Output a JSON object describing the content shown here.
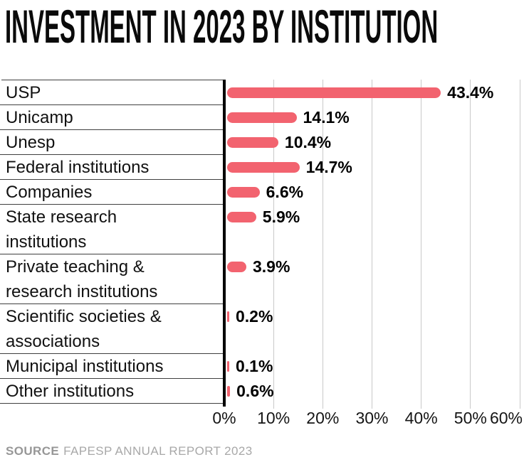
{
  "title": "INVESTMENT IN 2023 BY INSTITUTION",
  "source": {
    "label": "SOURCE",
    "text": "FAPESP ANNUAL REPORT 2023"
  },
  "colors": {
    "bar": "#f2636f",
    "axis": "#000000",
    "gridline": "#c9c9c9",
    "divider": "#3f3f3f",
    "title_text": "#0a0a0a",
    "label_text": "#111111",
    "source_label": "#979797",
    "source_text": "#a8a8a8"
  },
  "chart_data": {
    "type": "bar",
    "orientation": "horizontal",
    "title": "INVESTMENT IN 2023 BY INSTITUTION",
    "categories": [
      "USP",
      "Unicamp",
      "Unesp",
      "Federal institutions",
      "Companies",
      "State research institutions",
      "Private teaching & research institutions",
      "Scientific societies & associations",
      "Municipal institutions",
      "Other institutions"
    ],
    "values": [
      43.4,
      14.1,
      10.4,
      14.7,
      6.6,
      5.9,
      3.9,
      0.2,
      0.1,
      0.6
    ],
    "value_labels": [
      "43.4%",
      "14.1%",
      "10.4%",
      "14.7%",
      "6.6%",
      "5.9%",
      "3.9%",
      "0.2%",
      "0.1%",
      "0.6%"
    ],
    "label_lines": [
      [
        "USP"
      ],
      [
        "Unicamp"
      ],
      [
        "Unesp"
      ],
      [
        "Federal institutions"
      ],
      [
        "Companies"
      ],
      [
        "State research",
        "institutions"
      ],
      [
        "Private teaching &",
        "research institutions"
      ],
      [
        "Scientific societies &",
        "associations"
      ],
      [
        "Municipal institutions"
      ],
      [
        "Other institutions"
      ]
    ],
    "x_tick_values": [
      0,
      10,
      20,
      30,
      40,
      50,
      60
    ],
    "x_tick_labels": [
      "0%",
      "10%",
      "20%",
      "30%",
      "40%",
      "50%",
      "60%"
    ],
    "xlim": [
      0,
      60
    ],
    "grid": true,
    "legend": false,
    "bar_color": "#f2636f"
  }
}
